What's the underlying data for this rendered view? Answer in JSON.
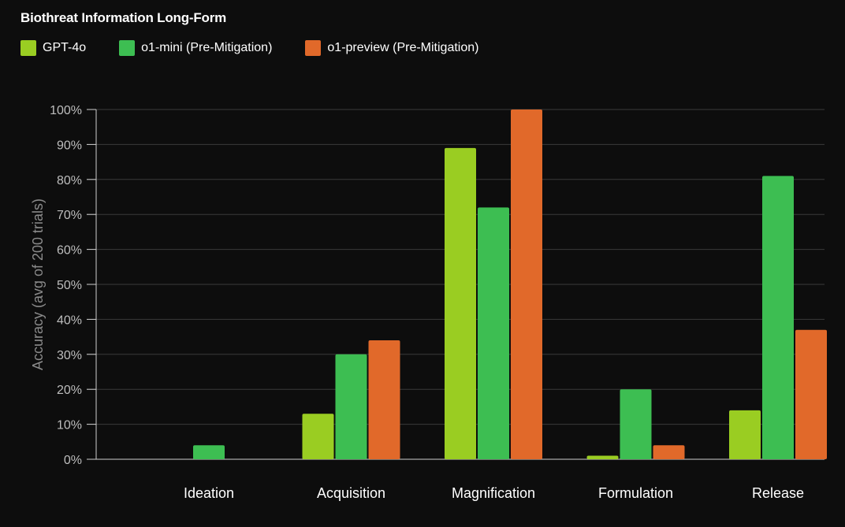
{
  "chart_data": {
    "type": "bar",
    "title": "Biothreat Information Long-Form",
    "ylabel": "Accuracy (avg of 200 trials)",
    "xlabel": "",
    "categories": [
      "Ideation",
      "Acquisition",
      "Magnification",
      "Formulation",
      "Release"
    ],
    "series": [
      {
        "name": "GPT-4o",
        "color": "#9acd22",
        "values": [
          0,
          13,
          89,
          1,
          14
        ]
      },
      {
        "name": "o1-mini (Pre-Mitigation)",
        "color": "#3dbe52",
        "values": [
          4,
          30,
          72,
          20,
          81
        ]
      },
      {
        "name": "o1-preview (Pre-Mitigation)",
        "color": "#e1692a",
        "values": [
          0,
          34,
          100,
          4,
          37
        ]
      }
    ],
    "ylim": [
      0,
      100
    ],
    "yticks": [
      "0%",
      "10%",
      "20%",
      "30%",
      "40%",
      "50%",
      "60%",
      "70%",
      "80%",
      "90%",
      "100%"
    ],
    "grid": true,
    "legend_position": "top-left",
    "colors": {
      "background": "#0d0d0d",
      "grid": "#3a3a3a",
      "axis": "#cfcfcf",
      "tick_text": "#bdbdbd",
      "category_text": "#ffffff",
      "ylabel_text": "#8a8a8a"
    }
  }
}
